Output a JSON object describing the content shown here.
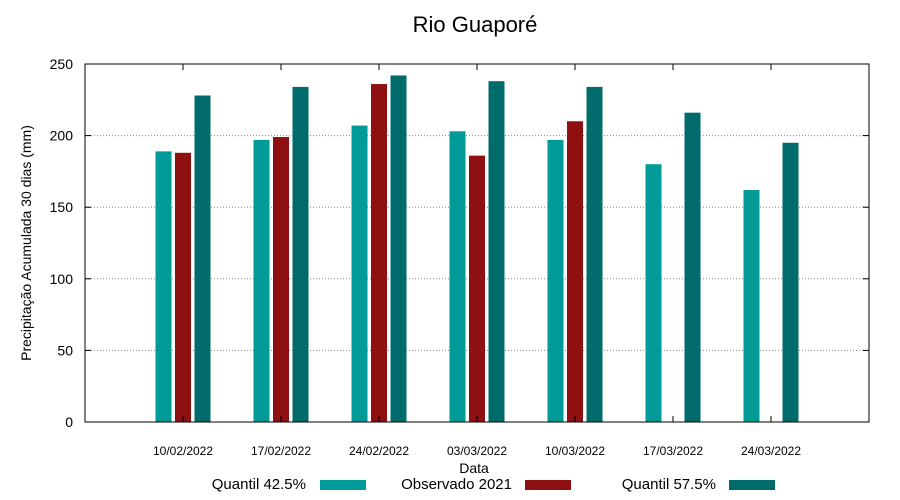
{
  "chart_data": {
    "type": "bar",
    "title": "Rio Guaporé",
    "xlabel": "Data",
    "ylabel": "Precipitação Acumulada 30 dias (mm)",
    "ylim": [
      0,
      250
    ],
    "yticks": [
      0,
      50,
      100,
      150,
      200,
      250
    ],
    "grid": true,
    "legend_position": "bottom",
    "categories": [
      "10/02/2022",
      "17/02/2022",
      "24/02/2022",
      "03/03/2022",
      "10/03/2022",
      "17/03/2022",
      "24/03/2022"
    ],
    "series": [
      {
        "name": "Quantil 42.5%",
        "color": "#009a99",
        "values": [
          189,
          197,
          207,
          203,
          197,
          180,
          162
        ]
      },
      {
        "name": "Observado 2021",
        "color": "#8f1010",
        "values": [
          188,
          199,
          236,
          186,
          210,
          null,
          null
        ]
      },
      {
        "name": "Quantil 57.5%",
        "color": "#006b6b",
        "values": [
          228,
          234,
          242,
          238,
          234,
          216,
          195
        ]
      }
    ]
  }
}
